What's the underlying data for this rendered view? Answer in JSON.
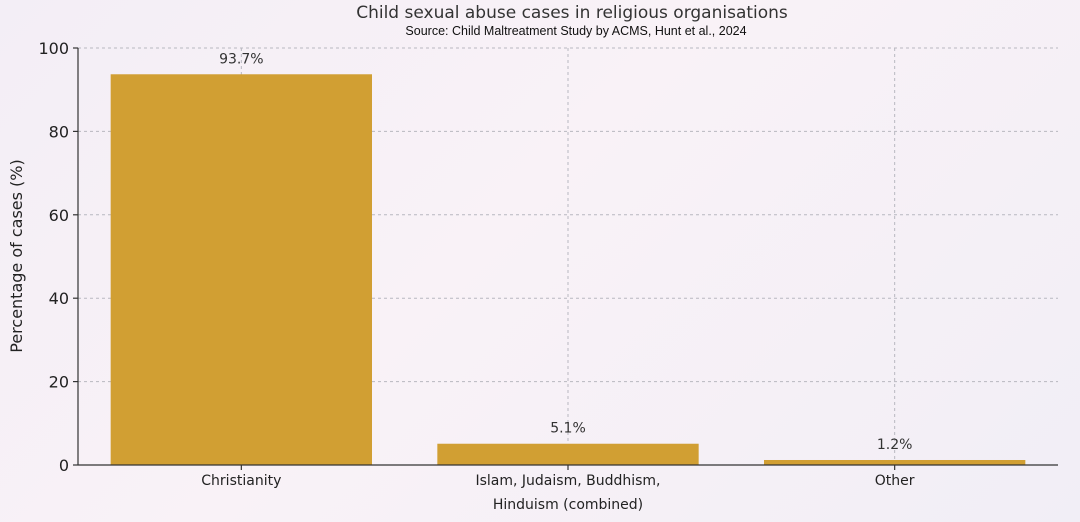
{
  "chart_data": {
    "type": "bar",
    "title": "Child sexual abuse cases in religious organisations",
    "subtitle": "Source: Child Maltreatment Study by ACMS, Hunt et al., 2024",
    "xlabel": "",
    "ylabel": "Percentage of cases (%)",
    "categories": [
      [
        "Christianity"
      ],
      [
        "Islam, Judaism, Buddhism,",
        "Hinduism (combined)"
      ],
      [
        "Other"
      ]
    ],
    "values": [
      93.7,
      5.1,
      1.2
    ],
    "data_labels": [
      "93.7%",
      "5.1%",
      "1.2%"
    ],
    "ylim": [
      0,
      100
    ],
    "yticks": [
      "0",
      "20",
      "40",
      "60",
      "80",
      "100"
    ],
    "grid": true,
    "bar_color": "#d19f33"
  }
}
